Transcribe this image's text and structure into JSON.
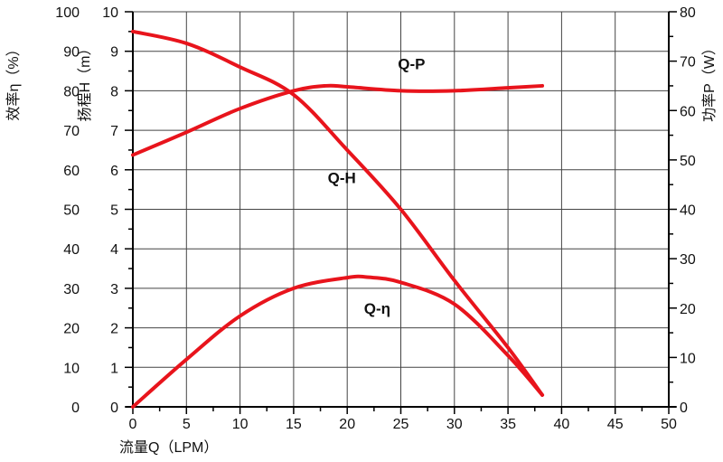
{
  "chart_data": {
    "type": "line",
    "title": "",
    "xlabel": "流量Q（LPM）",
    "ylabel_left_outer": "效率η（%）",
    "ylabel_left_inner": "扬程H（m）",
    "ylabel_right": "功率P（W）",
    "xlim": [
      0,
      50
    ],
    "x_ticks": [
      0,
      5,
      10,
      15,
      20,
      25,
      30,
      35,
      40,
      45,
      50
    ],
    "ylim_H": [
      0,
      10
    ],
    "H_ticks": [
      0,
      1,
      2,
      3,
      4,
      5,
      6,
      7,
      8,
      9,
      10
    ],
    "ylim_eff": [
      0,
      100
    ],
    "eff_ticks": [
      0,
      10,
      20,
      30,
      40,
      50,
      60,
      70,
      80,
      90,
      100
    ],
    "ylim_P": [
      0,
      80
    ],
    "P_ticks": [
      0,
      10,
      20,
      30,
      40,
      50,
      60,
      70,
      80
    ],
    "grid": true,
    "line_color": "#e8141c",
    "series": [
      {
        "name": "Q-H",
        "axis": "H",
        "label_at": [
          19.5,
          5.8
        ],
        "x": [
          0,
          5,
          10,
          15,
          20,
          25,
          30,
          35,
          38.2
        ],
        "y": [
          9.5,
          9.2,
          8.6,
          7.9,
          6.5,
          5.0,
          3.2,
          1.5,
          0.3
        ]
      },
      {
        "name": "Q-P",
        "axis": "P",
        "label_at": [
          26,
          69.5
        ],
        "x": [
          0,
          5,
          10,
          15,
          18,
          20,
          25,
          30,
          35,
          38.2
        ],
        "y": [
          51,
          55.6,
          60.4,
          64,
          65,
          64.8,
          64,
          64,
          64.6,
          65
        ]
      },
      {
        "name": "Q-η",
        "axis": "eff",
        "label_at": [
          22.8,
          25
        ],
        "x": [
          0,
          5,
          10,
          15,
          20,
          22,
          25,
          30,
          35,
          38.2
        ],
        "y": [
          0,
          12,
          23,
          30,
          32.7,
          32.8,
          31.5,
          26,
          13,
          3
        ]
      }
    ]
  }
}
